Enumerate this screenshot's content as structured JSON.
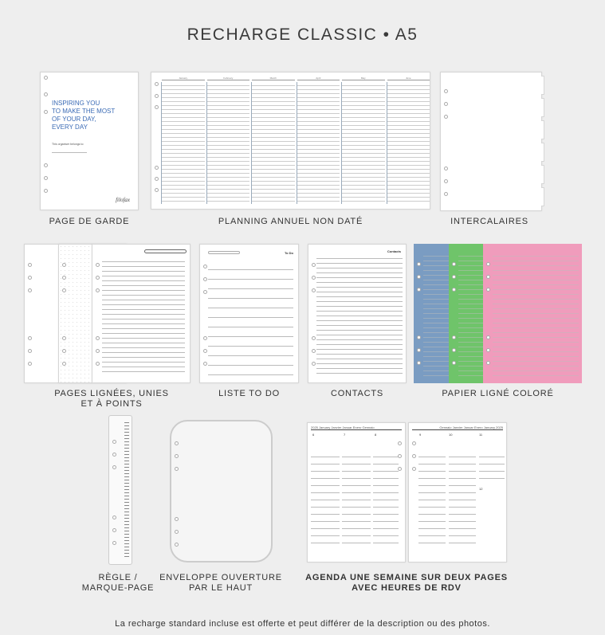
{
  "title": "RECHARGE CLASSIC • A5",
  "cover": {
    "headline": [
      "INSPIRING YOU",
      "TO MAKE THE MOST",
      "OF YOUR DAY,",
      "EVERY DAY"
    ],
    "belongs": "This organiser belongs to:",
    "logo": "filofax"
  },
  "planning": {
    "months": [
      "January",
      "February",
      "March",
      "April",
      "May",
      "June"
    ]
  },
  "labels": {
    "cover": "PAGE DE GARDE",
    "planning": "PLANNING ANNUEL NON DATÉ",
    "dividers": "INTERCALAIRES",
    "ruled": [
      "PAGES LIGNÉES, UNIES",
      "ET À POINTS"
    ],
    "todo": "LISTE TO DO",
    "contacts": "CONTACTS",
    "colored": "PAPIER LIGNÉ COLORÉ",
    "ruler": [
      "RÈGLE /",
      "MARQUE-PAGE"
    ],
    "envelope": [
      "ENVELOPPE OUVERTURE",
      "PAR LE HAUT"
    ],
    "agenda": [
      "AGENDA UNE SEMAINE SUR DEUX PAGES",
      "AVEC HEURES DE RDV"
    ]
  },
  "todo_title": "To Do",
  "contacts_title": "Contacts",
  "agenda": {
    "left_header": "2025 January Janvier Januar Enero Gennaio",
    "right_header": "Gennaio Janvier Januar Enero January 2025",
    "days": [
      "6",
      "7",
      "8",
      "9",
      "10",
      "11",
      "12"
    ]
  },
  "colors": {
    "blue": "#7a9cc2",
    "green": "#6fc46a",
    "pink": "#f09cbc",
    "cover_text": "#3b6bb5"
  },
  "footer": "La recharge standard incluse est offerte et peut différer de la description ou des photos."
}
